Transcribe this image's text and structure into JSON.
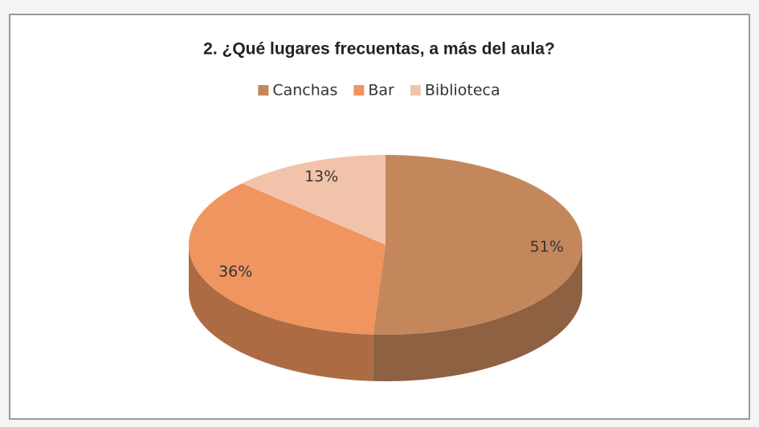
{
  "chart_data": {
    "type": "pie",
    "title": "2.  ¿Qué lugares frecuentas, a más del aula?",
    "categories": [
      "Canchas",
      "Bar",
      "Biblioteca"
    ],
    "values": [
      51,
      36,
      13
    ],
    "value_labels": [
      "51%",
      "36%",
      "13%"
    ],
    "colors": [
      "#c4875c",
      "#f0955f",
      "#f2c3ab"
    ],
    "legend": "top"
  }
}
